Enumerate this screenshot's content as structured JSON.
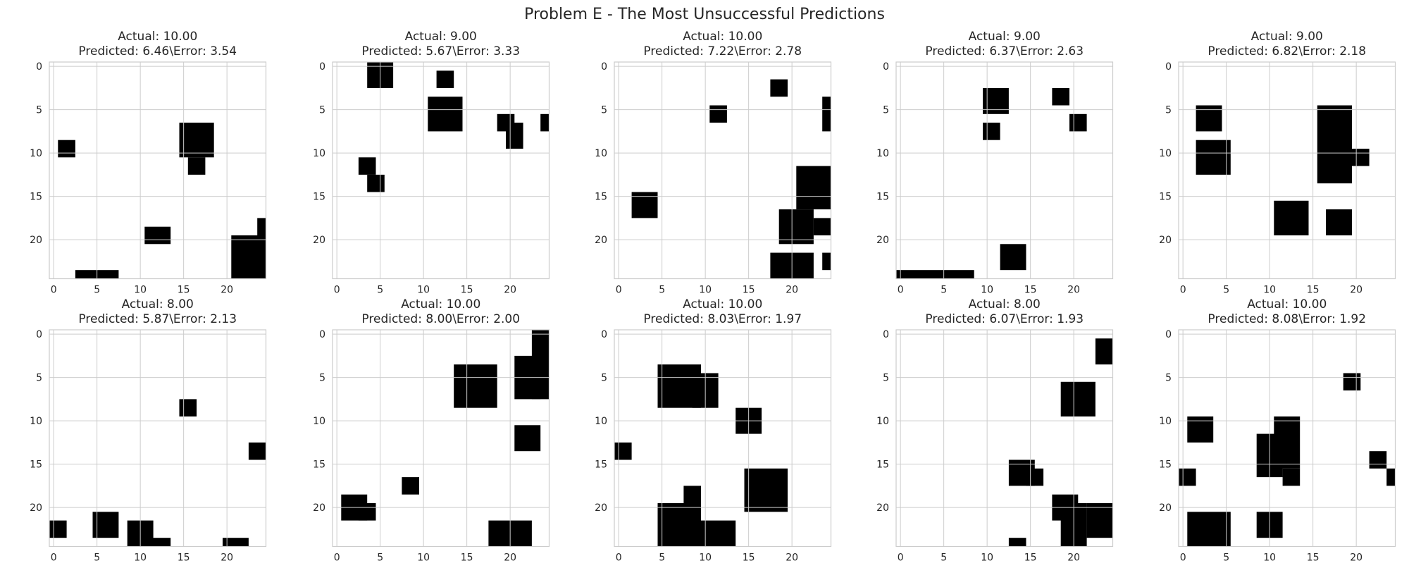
{
  "suptitle": "Problem E - The Most Unsuccessful Predictions",
  "chart_data": {
    "type": "heatmap",
    "grid_size": 25,
    "colormap": "binary",
    "grid": true,
    "xticks": [
      0,
      5,
      10,
      15,
      20
    ],
    "yticks": [
      0,
      5,
      10,
      15,
      20
    ],
    "panels": [
      {
        "title_line1": "Actual: 10.00",
        "title_line2": "Predicted: 6.46\\Error: 3.54",
        "actual": 10.0,
        "predicted": 6.46,
        "error": 3.54,
        "filled_rects": [
          [
            1,
            9,
            2,
            2
          ],
          [
            15,
            7,
            4,
            4
          ],
          [
            16,
            11,
            2,
            2
          ],
          [
            3,
            24,
            5,
            1
          ],
          [
            11,
            19,
            3,
            2
          ],
          [
            21,
            20,
            4,
            5
          ],
          [
            24,
            18,
            1,
            2
          ]
        ]
      },
      {
        "title_line1": "Actual: 9.00",
        "title_line2": "Predicted: 5.67\\Error: 3.33",
        "actual": 9.0,
        "predicted": 5.67,
        "error": 3.33,
        "filled_rects": [
          [
            4,
            0,
            3,
            3
          ],
          [
            12,
            1,
            2,
            2
          ],
          [
            11,
            4,
            4,
            4
          ],
          [
            19,
            6,
            2,
            2
          ],
          [
            20,
            7,
            2,
            3
          ],
          [
            24,
            6,
            1,
            2
          ],
          [
            3,
            11,
            2,
            2
          ],
          [
            4,
            13,
            2,
            2
          ]
        ]
      },
      {
        "title_line1": "Actual: 10.00",
        "title_line2": "Predicted: 7.22\\Error: 2.78",
        "actual": 10.0,
        "predicted": 7.22,
        "error": 2.78,
        "filled_rects": [
          [
            18,
            2,
            2,
            2
          ],
          [
            11,
            5,
            2,
            2
          ],
          [
            24,
            4,
            1,
            4
          ],
          [
            2,
            15,
            3,
            3
          ],
          [
            21,
            12,
            4,
            5
          ],
          [
            19,
            17,
            4,
            4
          ],
          [
            23,
            18,
            2,
            2
          ],
          [
            18,
            22,
            5,
            3
          ],
          [
            24,
            22,
            1,
            2
          ]
        ]
      },
      {
        "title_line1": "Actual: 9.00",
        "title_line2": "Predicted: 6.37\\Error: 2.63",
        "actual": 9.0,
        "predicted": 6.37,
        "error": 2.63,
        "filled_rects": [
          [
            10,
            3,
            3,
            3
          ],
          [
            10,
            7,
            2,
            2
          ],
          [
            18,
            3,
            2,
            2
          ],
          [
            20,
            6,
            2,
            2
          ],
          [
            0,
            24,
            9,
            1
          ],
          [
            12,
            21,
            3,
            3
          ]
        ]
      },
      {
        "title_line1": "Actual: 9.00",
        "title_line2": "Predicted: 6.82\\Error: 2.18",
        "actual": 9.0,
        "predicted": 6.82,
        "error": 2.18,
        "filled_rects": [
          [
            2,
            5,
            3,
            3
          ],
          [
            2,
            9,
            4,
            4
          ],
          [
            16,
            5,
            4,
            9
          ],
          [
            20,
            10,
            2,
            2
          ],
          [
            11,
            16,
            4,
            4
          ],
          [
            17,
            17,
            3,
            3
          ]
        ]
      },
      {
        "title_line1": "Actual: 8.00",
        "title_line2": "Predicted: 5.87\\Error: 2.13",
        "actual": 8.0,
        "predicted": 5.87,
        "error": 2.13,
        "filled_rects": [
          [
            15,
            8,
            2,
            2
          ],
          [
            23,
            13,
            2,
            2
          ],
          [
            0,
            22,
            2,
            2
          ],
          [
            5,
            21,
            3,
            3
          ],
          [
            9,
            22,
            3,
            3
          ],
          [
            11,
            24,
            3,
            1
          ],
          [
            20,
            24,
            3,
            1
          ]
        ]
      },
      {
        "title_line1": "Actual: 10.00",
        "title_line2": "Predicted: 8.00\\Error: 2.00",
        "actual": 10.0,
        "predicted": 8.0,
        "error": 2.0,
        "filled_rects": [
          [
            14,
            4,
            5,
            5
          ],
          [
            21,
            3,
            3,
            5
          ],
          [
            23,
            0,
            2,
            8
          ],
          [
            21,
            11,
            3,
            3
          ],
          [
            1,
            19,
            3,
            3
          ],
          [
            3,
            20,
            2,
            2
          ],
          [
            8,
            17,
            2,
            2
          ],
          [
            18,
            22,
            5,
            3
          ]
        ]
      },
      {
        "title_line1": "Actual: 10.00",
        "title_line2": "Predicted: 8.03\\Error: 1.97",
        "actual": 10.0,
        "predicted": 8.03,
        "error": 1.97,
        "filled_rects": [
          [
            5,
            4,
            5,
            5
          ],
          [
            9,
            5,
            3,
            4
          ],
          [
            14,
            9,
            3,
            3
          ],
          [
            0,
            13,
            2,
            2
          ],
          [
            15,
            16,
            5,
            5
          ],
          [
            5,
            20,
            5,
            5
          ],
          [
            8,
            18,
            2,
            3
          ],
          [
            10,
            22,
            4,
            3
          ]
        ]
      },
      {
        "title_line1": "Actual: 8.00",
        "title_line2": "Predicted: 6.07\\Error: 1.93",
        "actual": 8.0,
        "predicted": 6.07,
        "error": 1.93,
        "filled_rects": [
          [
            23,
            1,
            2,
            3
          ],
          [
            19,
            6,
            4,
            4
          ],
          [
            13,
            15,
            3,
            3
          ],
          [
            15,
            16,
            2,
            2
          ],
          [
            18,
            19,
            3,
            3
          ],
          [
            19,
            20,
            3,
            5
          ],
          [
            22,
            20,
            3,
            4
          ],
          [
            13,
            24,
            2,
            1
          ]
        ]
      },
      {
        "title_line1": "Actual: 10.00",
        "title_line2": "Predicted: 8.08\\Error: 1.92",
        "actual": 10.0,
        "predicted": 8.08,
        "error": 1.92,
        "filled_rects": [
          [
            19,
            5,
            2,
            2
          ],
          [
            1,
            10,
            3,
            3
          ],
          [
            9,
            12,
            3,
            5
          ],
          [
            11,
            10,
            3,
            6
          ],
          [
            12,
            16,
            2,
            2
          ],
          [
            0,
            16,
            2,
            2
          ],
          [
            22,
            14,
            2,
            2
          ],
          [
            24,
            16,
            1,
            2
          ],
          [
            1,
            21,
            5,
            4
          ],
          [
            9,
            21,
            3,
            3
          ]
        ]
      }
    ]
  }
}
